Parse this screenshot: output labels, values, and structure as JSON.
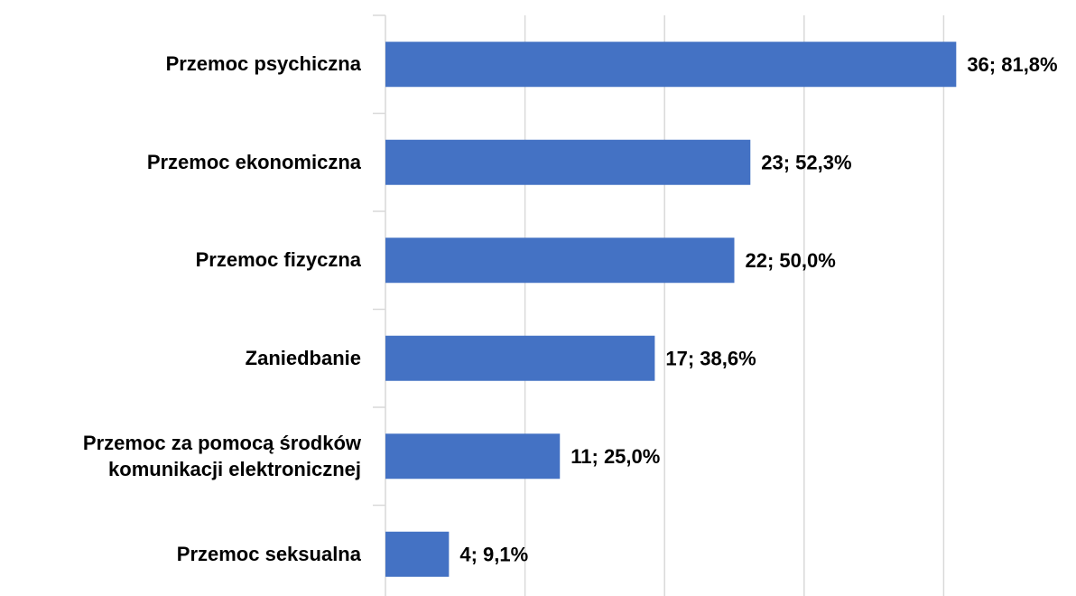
{
  "chart_data": {
    "type": "barh",
    "categories": [
      "Przemoc psychiczna",
      "Przemoc ekonomiczna",
      "Przemoc fizyczna",
      "Zaniedbanie",
      "Przemoc za pomocą środków\nkomunikacji elektronicznej",
      "Przemoc seksualna"
    ],
    "values": [
      81.8,
      52.3,
      50.0,
      38.6,
      25.0,
      9.1
    ],
    "value_labels": [
      "36; 81,8%",
      "23; 52,3%",
      "22; 50,0%",
      "17; 38,6%",
      "11; 25,0%",
      "4; 9,1%"
    ],
    "color": "#4472c4",
    "xlim": [
      0,
      98
    ],
    "xticks": [
      0,
      20,
      40,
      60,
      80
    ],
    "grid": true
  }
}
